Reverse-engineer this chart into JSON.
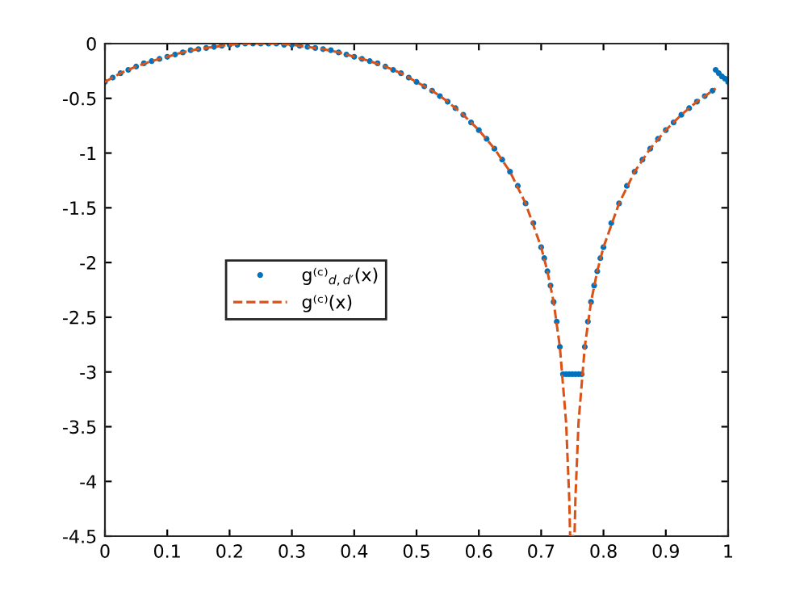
{
  "chart_data": {
    "type": "line",
    "xlim": [
      0,
      1
    ],
    "ylim": [
      -4.5,
      0
    ],
    "xticks": [
      0,
      0.1,
      0.2,
      0.3,
      0.4,
      0.5,
      0.6,
      0.7,
      0.8,
      0.9,
      1
    ],
    "yticks": [
      -4.5,
      -4,
      -3.5,
      -3,
      -2.5,
      -2,
      -1.5,
      -1,
      -0.5,
      0
    ],
    "grid": false,
    "legend": "left",
    "series": [
      {
        "name": "g⁽ᶜ⁾$_{d,d′}$(x)",
        "type": "scatter",
        "marker": "circle",
        "color": "#0072bd",
        "x": [
          0,
          0.0125,
          0.025,
          0.0375,
          0.05,
          0.0625,
          0.075,
          0.0875,
          0.1,
          0.1125,
          0.125,
          0.1375,
          0.15,
          0.1625,
          0.175,
          0.1875,
          0.2,
          0.2125,
          0.225,
          0.2375,
          0.25,
          0.2625,
          0.275,
          0.2875,
          0.3,
          0.3125,
          0.325,
          0.3375,
          0.35,
          0.3625,
          0.375,
          0.3875,
          0.4,
          0.4125,
          0.425,
          0.4375,
          0.45,
          0.4625,
          0.475,
          0.4875,
          0.5,
          0.5125,
          0.525,
          0.5375,
          0.55,
          0.5625,
          0.575,
          0.5875,
          0.6,
          0.6125,
          0.625,
          0.6375,
          0.65,
          0.6625,
          0.675,
          0.6875,
          0.7,
          0.705,
          0.71,
          0.715,
          0.72,
          0.725,
          0.73,
          0.735,
          0.74,
          0.745,
          0.75,
          0.755,
          0.76,
          0.765,
          0.77,
          0.775,
          0.78,
          0.785,
          0.79,
          0.795,
          0.8,
          0.8125,
          0.825,
          0.8375,
          0.85,
          0.8625,
          0.875,
          0.8875,
          0.9,
          0.9125,
          0.925,
          0.9375,
          0.95,
          0.9625,
          0.975,
          0.98,
          0.985,
          0.99,
          0.995,
          1
        ],
        "values": [
          -0.35,
          -0.31,
          -0.27,
          -0.24,
          -0.21,
          -0.18,
          -0.16,
          -0.14,
          -0.12,
          -0.1,
          -0.08,
          -0.06,
          -0.05,
          -0.04,
          -0.03,
          -0.02,
          -0.01,
          -0.01,
          0,
          0,
          0,
          0,
          0,
          -0.01,
          -0.01,
          -0.02,
          -0.03,
          -0.04,
          -0.05,
          -0.06,
          -0.08,
          -0.1,
          -0.12,
          -0.14,
          -0.16,
          -0.18,
          -0.21,
          -0.24,
          -0.27,
          -0.31,
          -0.35,
          -0.39,
          -0.43,
          -0.48,
          -0.53,
          -0.59,
          -0.65,
          -0.72,
          -0.79,
          -0.87,
          -0.96,
          -1.06,
          -1.17,
          -1.3,
          -1.46,
          -1.64,
          -1.86,
          -1.96,
          -2.08,
          -2.21,
          -2.36,
          -2.54,
          -2.77,
          -3.02,
          -3.02,
          -3.02,
          -3.02,
          -3.02,
          -3.02,
          -3.02,
          -2.77,
          -2.54,
          -2.36,
          -2.21,
          -2.08,
          -1.96,
          -1.86,
          -1.64,
          -1.46,
          -1.3,
          -1.17,
          -1.06,
          -0.96,
          -0.87,
          -0.79,
          -0.72,
          -0.65,
          -0.59,
          -0.53,
          -0.48,
          -0.43,
          -0.24,
          -0.27,
          -0.3,
          -0.32,
          -0.35
        ]
      },
      {
        "name": "g⁽ᶜ⁾(x)",
        "line_style": "dashed",
        "color": "#d95319",
        "x": [
          0,
          0.025,
          0.05,
          0.075,
          0.1,
          0.125,
          0.15,
          0.175,
          0.2,
          0.225,
          0.25,
          0.275,
          0.3,
          0.325,
          0.35,
          0.375,
          0.4,
          0.425,
          0.45,
          0.475,
          0.5,
          0.525,
          0.55,
          0.575,
          0.6,
          0.625,
          0.65,
          0.675,
          0.7,
          0.71,
          0.72,
          0.73,
          0.74,
          0.745,
          0.7465,
          0.7535,
          0.755,
          0.76,
          0.77,
          0.78,
          0.79,
          0.8,
          0.825,
          0.85,
          0.875,
          0.9,
          0.925,
          0.95,
          0.975,
          0.98
        ],
        "values": [
          -0.35,
          -0.27,
          -0.21,
          -0.16,
          -0.12,
          -0.08,
          -0.05,
          -0.03,
          -0.01,
          0,
          0,
          0,
          -0.01,
          -0.03,
          -0.05,
          -0.08,
          -0.12,
          -0.16,
          -0.21,
          -0.27,
          -0.35,
          -0.43,
          -0.53,
          -0.65,
          -0.79,
          -0.96,
          -1.17,
          -1.46,
          -1.86,
          -2.08,
          -2.36,
          -2.77,
          -3.46,
          -4.15,
          -4.5,
          -4.5,
          -4.15,
          -3.46,
          -2.77,
          -2.36,
          -2.08,
          -1.86,
          -1.46,
          -1.17,
          -0.96,
          -0.79,
          -0.65,
          -0.53,
          -0.43,
          -0.41
        ]
      }
    ]
  }
}
